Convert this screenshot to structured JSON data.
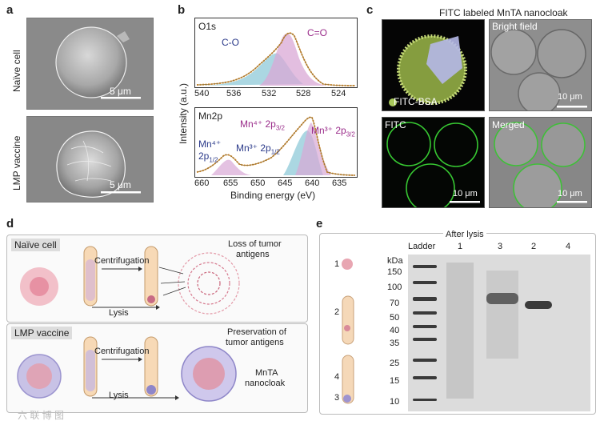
{
  "panel_a": {
    "label": "a",
    "top_side_label": "Naïve cell",
    "bottom_side_label": "LMP vaccine",
    "scale_top": "5 μm",
    "scale_bottom": "5 μm"
  },
  "panel_b": {
    "label": "b",
    "ylabel": "Intensity (a.u.)",
    "xlabel": "Binding energy (eV)",
    "o1s": {
      "title": "O1s",
      "peak_co": "C-O",
      "peak_c_eq_o": "C=O",
      "ticks": [
        "540",
        "536",
        "532",
        "528",
        "524"
      ]
    },
    "mn2p": {
      "title": "Mn2p",
      "label_mn4_2p12_a": "Mn⁴⁺",
      "label_mn4_2p12_b": "2p",
      "label_mn4_2p12_sub": "1/2",
      "label_mn3_2p12": "Mn³⁺ 2p",
      "label_mn3_2p12_sub": "1/2",
      "label_mn4_2p32": "Mn⁴⁺ 2p",
      "label_mn4_2p32_sub": "3/2",
      "label_mn3_2p32": "Mn³⁺ 2p",
      "label_mn3_2p32_sub": "3/2",
      "ticks": [
        "660",
        "655",
        "650",
        "645",
        "640",
        "635"
      ]
    }
  },
  "panel_c": {
    "label": "c",
    "title": "FITC labeled MnTA nanocloak",
    "legend": "FITC-BSA",
    "bright_field": "Bright field",
    "fitc": "FITC",
    "merged": "Merged",
    "scale_bf": "10 μm",
    "scale_fitc": "10 μm",
    "scale_merged": "10 μm"
  },
  "panel_d": {
    "label": "d",
    "top_tag": "Naïve cell",
    "bottom_tag": "LMP vaccine",
    "centrifugation_top": "Centrifugation",
    "centrifugation_bottom": "Centrifugation",
    "lysis_top": "Lysis",
    "lysis_bottom": "Lysis",
    "loss_line1": "Loss of tumor",
    "loss_line2": "antigens",
    "preserve_line1": "Preservation of",
    "preserve_line2": "tumor antigens",
    "nanocloak_line1": "MnTA",
    "nanocloak_line2": "nanocloak"
  },
  "panel_e": {
    "label": "e",
    "after_lysis": "After lysis",
    "ladder": "Ladder",
    "lanes": [
      "1",
      "3",
      "2",
      "4"
    ],
    "kda": "kDa",
    "markers": [
      "150",
      "100",
      "70",
      "50",
      "40",
      "35",
      "25",
      "15",
      "10"
    ],
    "tube_labels": [
      "1",
      "2",
      "4",
      "3"
    ]
  },
  "watermark": "六 联 博 图"
}
